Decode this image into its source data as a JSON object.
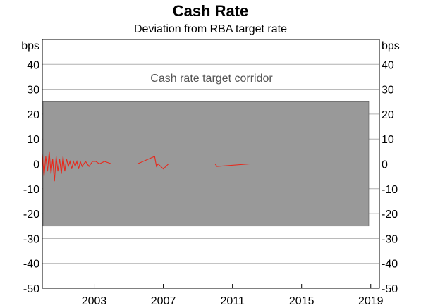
{
  "chart_data": {
    "type": "line",
    "title": "Cash Rate",
    "subtitle": "Deviation from RBA target rate",
    "unit_left": "bps",
    "unit_right": "bps",
    "ylim": [
      -50,
      50
    ],
    "yticks": [
      40,
      30,
      20,
      10,
      0,
      -10,
      -20,
      -30,
      -40,
      -50
    ],
    "xlim": [
      2000.0,
      2019.5
    ],
    "xticks": [
      "2003",
      "2007",
      "2011",
      "2015",
      "2019"
    ],
    "grid": true,
    "band": {
      "label": "Cash rate target corridor",
      "lower": -25,
      "upper": 25,
      "color": "#999999"
    },
    "series": [
      {
        "color": "#e8281b",
        "x": [
          2000.0,
          2000.1,
          2000.2,
          2000.3,
          2000.4,
          2000.5,
          2000.6,
          2000.7,
          2000.8,
          2000.9,
          2001.0,
          2001.1,
          2001.2,
          2001.3,
          2001.4,
          2001.5,
          2001.6,
          2001.7,
          2001.8,
          2001.9,
          2002.0,
          2002.1,
          2002.2,
          2002.3,
          2002.5,
          2002.7,
          2002.9,
          2003.1,
          2003.3,
          2003.6,
          2004.0,
          2004.5,
          2005.5,
          2006.5,
          2006.6,
          2006.7,
          2007.0,
          2007.3,
          2007.5,
          2008.0,
          2009.0,
          2010.0,
          2010.1,
          2012.0,
          2014.0,
          2016.0,
          2018.0,
          2019.5
        ],
        "values": [
          4,
          -5,
          3,
          -3,
          5,
          -4,
          2,
          -7,
          3,
          -3,
          2,
          -4,
          3,
          -3,
          2,
          -1,
          1,
          -2,
          1,
          -1,
          1,
          -2,
          1,
          -1,
          1,
          -1,
          1,
          1,
          0,
          1,
          0,
          0,
          0,
          3,
          -1,
          0,
          -2,
          0,
          0,
          0,
          0,
          0,
          -1,
          0,
          0,
          0,
          0,
          0
        ]
      }
    ]
  }
}
